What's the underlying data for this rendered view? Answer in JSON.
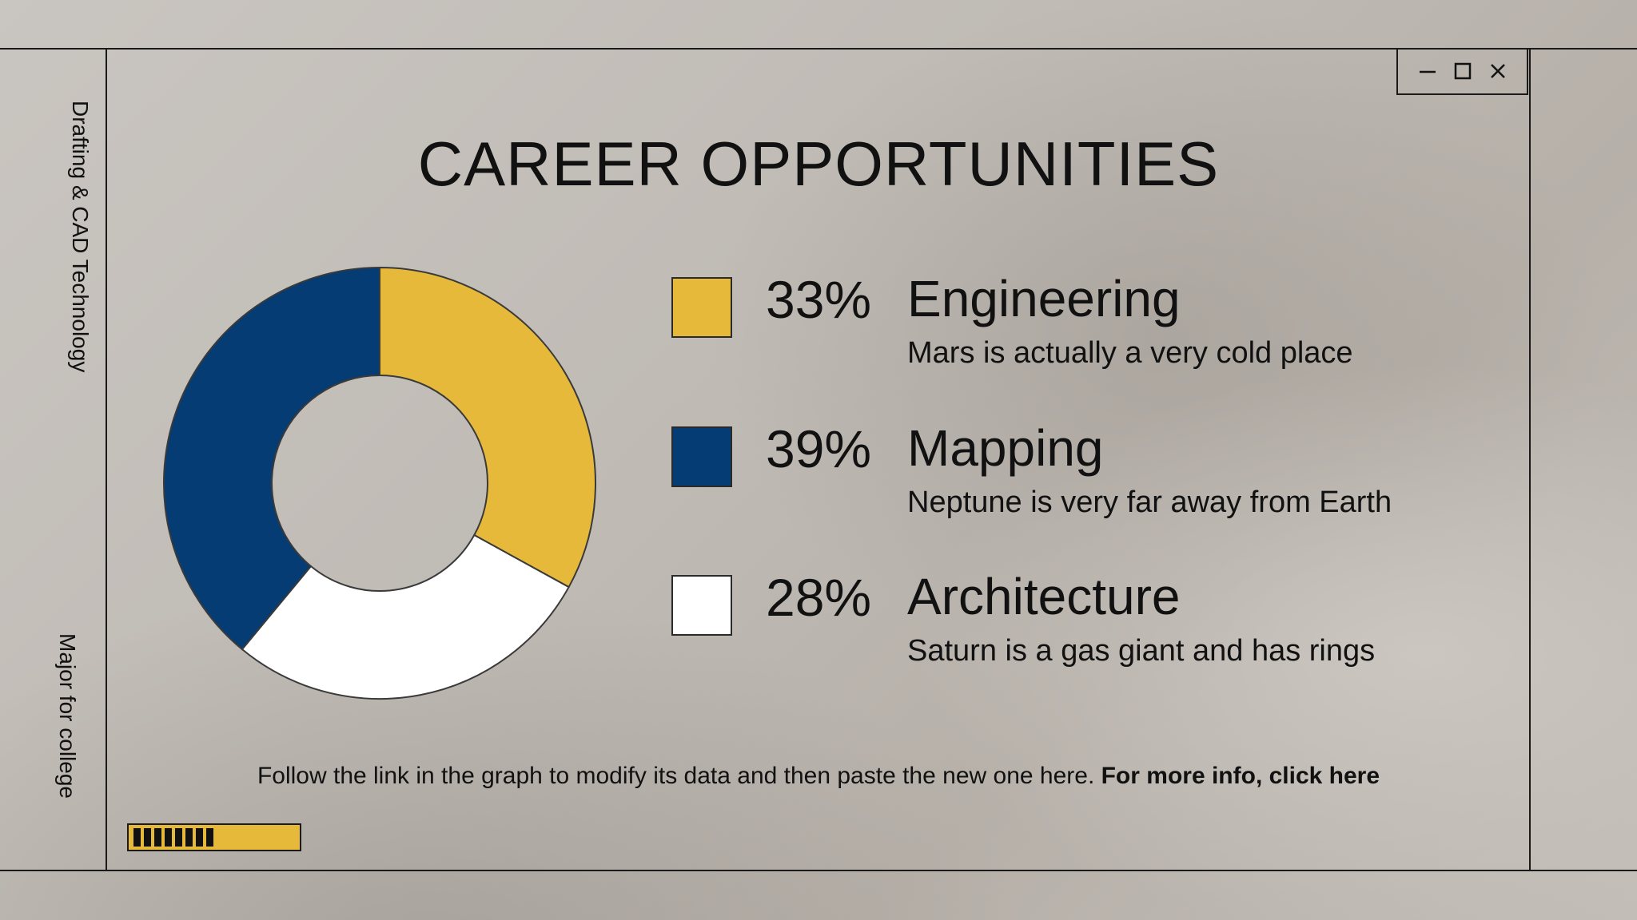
{
  "window": {
    "title": "CAREER OPPORTUNITIES",
    "controls": [
      {
        "name": "minimize",
        "icon": "minimize-icon"
      },
      {
        "name": "maximize",
        "icon": "maximize-icon"
      },
      {
        "name": "close",
        "icon": "close-icon"
      }
    ]
  },
  "sidebar": {
    "top_text": "Drafting & CAD Technology",
    "bottom_text": "Major for college"
  },
  "chart_data": {
    "type": "pie",
    "style": "donut",
    "start": "top",
    "direction": "clockwise",
    "slices": [
      {
        "label": "Engineering",
        "value": 33,
        "color": "#e6b93a"
      },
      {
        "label": "Architecture",
        "value": 28,
        "color": "#ffffff"
      },
      {
        "label": "Mapping",
        "value": 39,
        "color": "#053c73"
      }
    ]
  },
  "legend": [
    {
      "percent": "33%",
      "category": "Engineering",
      "description": "Mars is actually a very cold place",
      "color": "#e6b93a"
    },
    {
      "percent": "39%",
      "category": "Mapping",
      "description": "Neptune is very far away from Earth",
      "color": "#053c73"
    },
    {
      "percent": "28%",
      "category": "Architecture",
      "description": "Saturn is a gas giant and has rings",
      "color": "#ffffff"
    }
  ],
  "footer": {
    "text": "Follow the link in the graph to modify its data and then paste the new one here. ",
    "link_text": "For more info, click here"
  },
  "progress": {
    "segments_filled": 8,
    "color": "#e6b93a"
  }
}
